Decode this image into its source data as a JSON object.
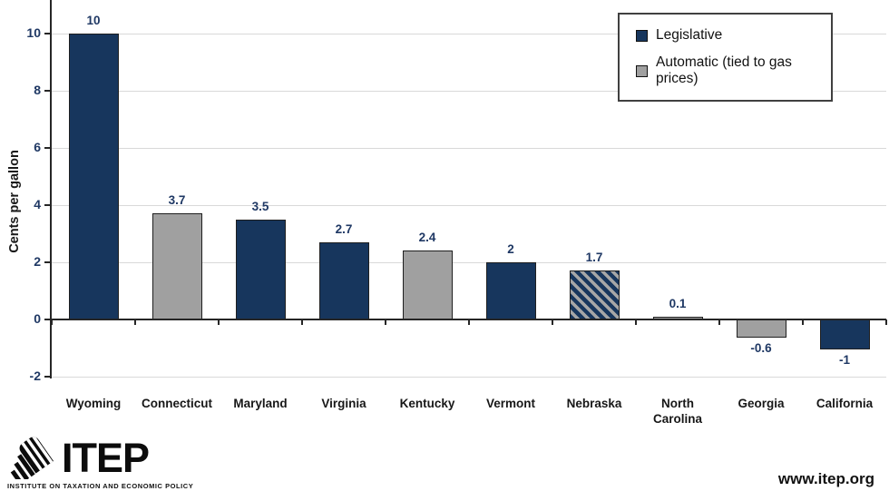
{
  "chart_data": {
    "type": "bar",
    "title": "",
    "xlabel": "",
    "ylabel": "Cents per gallon",
    "categories": [
      "Wyoming",
      "Connecticut",
      "Maryland",
      "Virginia",
      "Kentucky",
      "Vermont",
      "Nebraska",
      "North Carolina",
      "Georgia",
      "California"
    ],
    "values": [
      10,
      3.7,
      3.5,
      2.7,
      2.4,
      2,
      1.7,
      0.1,
      -0.6,
      -1
    ],
    "value_labels": [
      "10",
      "3.7",
      "3.5",
      "2.7",
      "2.4",
      "2",
      "1.7",
      "0.1",
      "-0.6",
      "-1"
    ],
    "bar_styles": [
      "legislative",
      "automatic",
      "legislative",
      "legislative",
      "automatic",
      "legislative",
      "mixed",
      "automatic",
      "automatic",
      "legislative"
    ],
    "yticks": [
      -2,
      0,
      2,
      4,
      6,
      8,
      10
    ],
    "ylim": [
      -2,
      11.2
    ],
    "grid": true,
    "legend_position": "top-right",
    "legend": [
      {
        "label": "Legislative",
        "style": "legislative"
      },
      {
        "label": "Automatic (tied to gas prices)",
        "style": "automatic"
      }
    ],
    "colors": {
      "legislative": "#17365D",
      "automatic": "#A0A0A0",
      "hatch_stripe": "#A6A6A6",
      "bar_border": "#1f1f1f",
      "gridline": "#D9D9D9",
      "axis": "#262626",
      "value_label": "#1F3864",
      "category_label": "#171717"
    }
  },
  "footer": {
    "logo_text": "ITEP",
    "logo_tagline": "INSTITUTE ON TAXATION AND ECONOMIC POLICY",
    "website": "www.itep.org"
  }
}
